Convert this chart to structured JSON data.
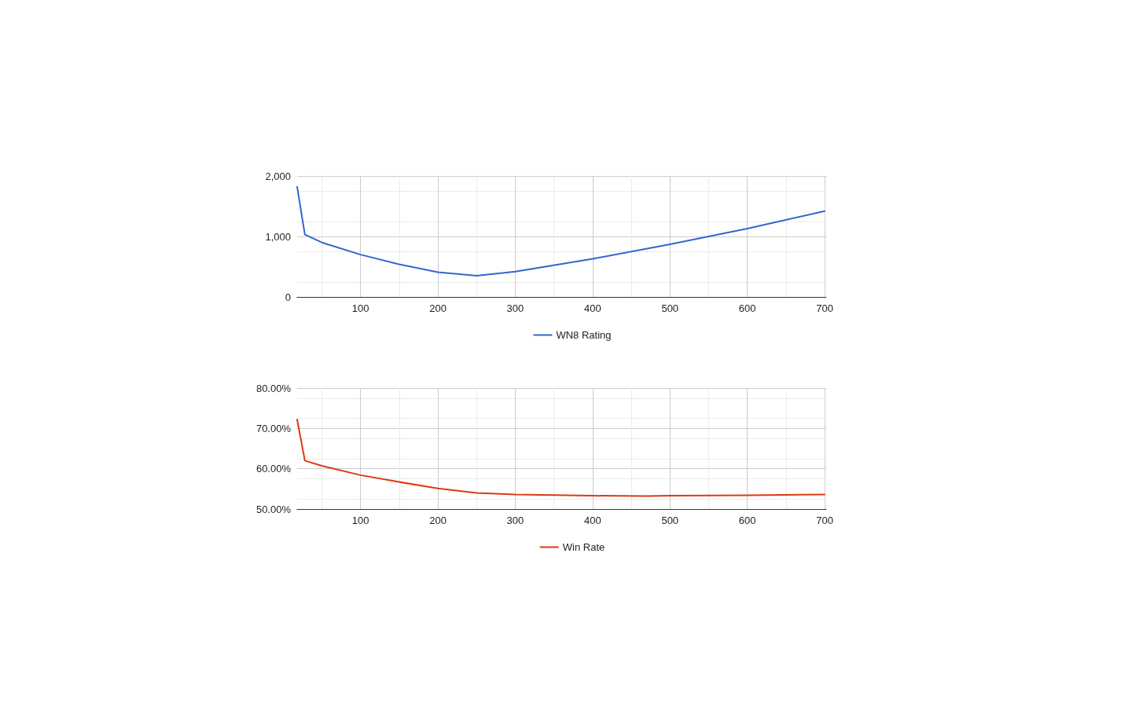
{
  "chart_data": [
    {
      "type": "line",
      "x": [
        18,
        28,
        50,
        100,
        150,
        200,
        250,
        300,
        400,
        500,
        600,
        700
      ],
      "series": [
        {
          "name": "WN8 Rating",
          "color": "#3366cc",
          "values": [
            1820,
            1030,
            900,
            700,
            540,
            410,
            350,
            420,
            630,
            870,
            1130,
            1420
          ]
        }
      ],
      "xlim": [
        18,
        702
      ],
      "xticks": [
        100,
        200,
        300,
        400,
        500,
        600,
        700
      ],
      "ylim": [
        0,
        2000
      ],
      "yticks": [
        0,
        {
          "value": 1000,
          "label": "1,000"
        },
        {
          "value": 2000,
          "label": "2,000"
        }
      ],
      "grid": true,
      "legend": "bottom"
    },
    {
      "type": "line",
      "x": [
        18,
        28,
        50,
        100,
        150,
        200,
        250,
        300,
        400,
        470,
        500,
        600,
        700
      ],
      "series": [
        {
          "name": "Win Rate",
          "color": "#dc3912",
          "values": [
            72.2,
            62,
            60.7,
            58.4,
            56.7,
            55.1,
            54.0,
            53.6,
            53.3,
            53.2,
            53.3,
            53.4,
            53.6
          ]
        }
      ],
      "xlim": [
        18,
        702
      ],
      "xticks": [
        100,
        200,
        300,
        400,
        500,
        600,
        700
      ],
      "ylim": [
        50,
        80
      ],
      "yticks": [
        {
          "value": 50,
          "label": "50.00%"
        },
        {
          "value": 60,
          "label": "60.00%"
        },
        {
          "value": 70,
          "label": "70.00%"
        },
        {
          "value": 80,
          "label": "80.00%"
        }
      ],
      "grid": true,
      "legend": "bottom"
    }
  ]
}
